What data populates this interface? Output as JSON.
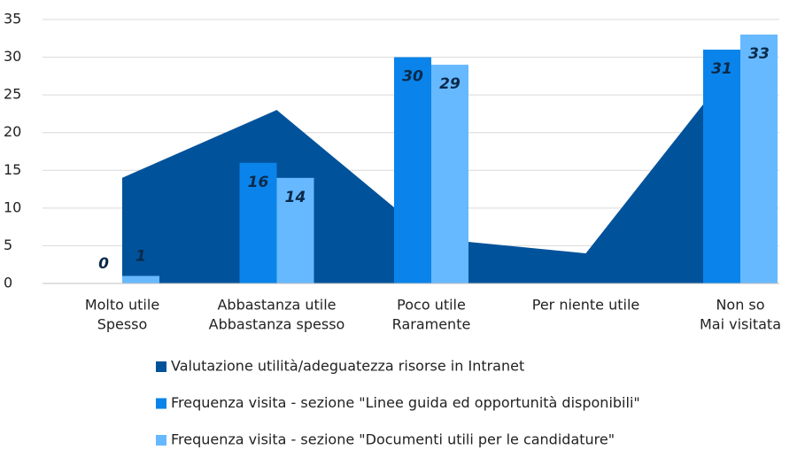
{
  "chart_data": {
    "type": "bar",
    "categories": [
      [
        "Molto utile",
        "Spesso"
      ],
      [
        "Abbastanza utile",
        "Abbastanza spesso"
      ],
      [
        "Poco utile",
        "Raramente"
      ],
      [
        "Per niente utile"
      ],
      [
        "Non so",
        "Mai visitata"
      ]
    ],
    "series": [
      {
        "name": "Valutazione utilità/adeguatezza risorse in Intranet",
        "color": "#00529b",
        "kind": "area",
        "values": [
          14,
          23,
          6,
          4,
          30
        ]
      },
      {
        "name": "Frequenza visita - sezione \"Linee guida ed opportunità disponibili\"",
        "color": "#0a84ea",
        "kind": "bar",
        "values": [
          0,
          16,
          30,
          null,
          31
        ]
      },
      {
        "name": "Frequenza visita - sezione \"Documenti utili per le candidature\"",
        "color": "#66b9ff",
        "kind": "bar",
        "values": [
          1,
          14,
          29,
          null,
          33
        ]
      }
    ],
    "ylim": [
      0,
      35
    ],
    "yticks": [
      0,
      5,
      10,
      15,
      20,
      25,
      30,
      35
    ],
    "grid": true,
    "legend": "bottom"
  }
}
